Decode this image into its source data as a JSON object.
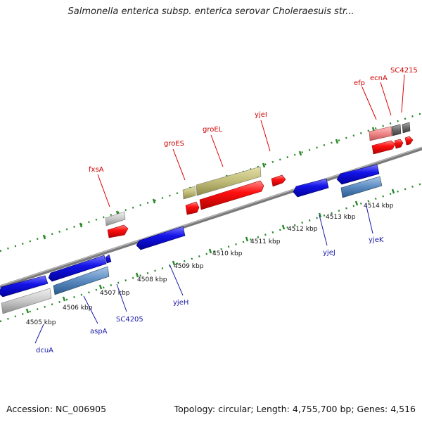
{
  "title": "Salmonella enterica subsp. enterica serovar Choleraesuis str...",
  "footer": {
    "accession": "Accession: NC_006905",
    "summary": "Topology: circular; Length: 4,755,700 bp; Genes: 4,516"
  },
  "ruler": {
    "labels": [
      "4505 kbp",
      "4506 kbp",
      "4507 kbp",
      "4508 kbp",
      "4509 kbp",
      "4510 kbp",
      "4511 kbp",
      "4512 kbp",
      "4513 kbp",
      "4514 kbp"
    ]
  },
  "genes": [
    {
      "name": "dcuA",
      "strand": "minus",
      "color": "#1010e0"
    },
    {
      "name": "aspA",
      "strand": "minus",
      "color": "#1010e0"
    },
    {
      "name": "SC4205",
      "strand": "minus",
      "color": "#1010e0"
    },
    {
      "name": "fxsA",
      "strand": "plus",
      "color": "#ff0000"
    },
    {
      "name": "yjeH",
      "strand": "minus",
      "color": "#1010e0"
    },
    {
      "name": "groES",
      "strand": "plus",
      "color": "#ff0000"
    },
    {
      "name": "groEL",
      "strand": "plus",
      "color": "#ff0000"
    },
    {
      "name": "yjeI",
      "strand": "plus",
      "color": "#ff0000"
    },
    {
      "name": "yjeJ",
      "strand": "minus",
      "color": "#1010e0"
    },
    {
      "name": "yjeK",
      "strand": "minus",
      "color": "#1010e0"
    },
    {
      "name": "efp",
      "strand": "plus",
      "color": "#ff0000"
    },
    {
      "name": "ecnA",
      "strand": "plus",
      "color": "#ff0000"
    },
    {
      "name": "SC4215",
      "strand": "plus",
      "color": "#ff0000"
    }
  ],
  "colors": {
    "plus_gene": "#ff0000",
    "minus_gene": "#1010e0",
    "plus_label": "#cc0000",
    "minus_label": "#1a1aa8",
    "tick": "#2a8a2a",
    "backbone": "#808080",
    "orf_gray": "#c8c8c8",
    "rna_olive": "#c0bc78",
    "steel_blue": "#5a8ac0"
  }
}
